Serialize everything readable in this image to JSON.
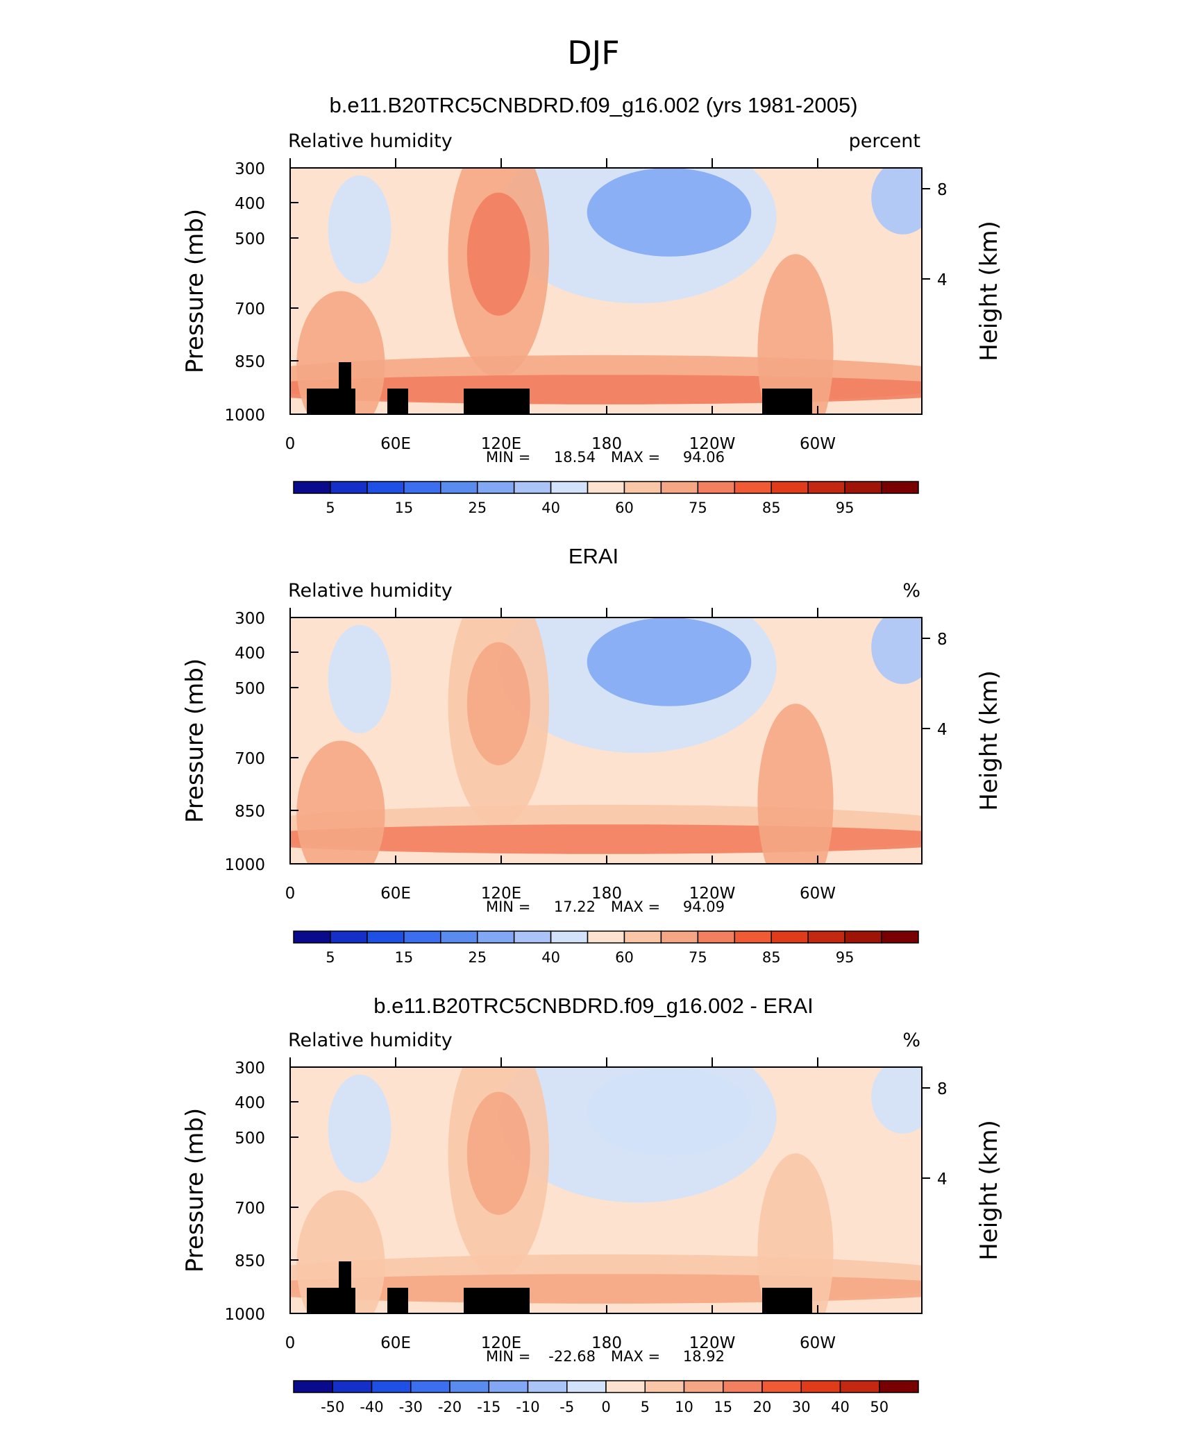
{
  "page_title": "DJF",
  "chart_data": [
    {
      "type": "heatmap",
      "title": "b.e11.B20TRC5CNBDRD.f09_g16.002 (yrs 1981-2005)",
      "left_label": "Relative humidity",
      "right_label": "percent",
      "ylabel": "Pressure (mb)",
      "ylabel_right": "Height (km)",
      "x_ticks": [
        "0",
        "60E",
        "120E",
        "180",
        "120W",
        "60W"
      ],
      "y_ticks": [
        "300",
        "400",
        "500",
        "700",
        "850",
        "1000"
      ],
      "y_ticks_right": [
        "8",
        "4"
      ],
      "min_label": "MIN =",
      "min_value": "18.54",
      "max_label": "MAX =",
      "max_value": "94.06",
      "colorbar_labels": [
        "5",
        "15",
        "25",
        "40",
        "60",
        "75",
        "85",
        "95"
      ],
      "colorbar_colors": [
        "#0a0a8c",
        "#1430c8",
        "#1e50e6",
        "#3c6ef0",
        "#5a8cf0",
        "#82a8f5",
        "#aac4f8",
        "#d2e2fa",
        "#fde3cf",
        "#f9c7a8",
        "#f5a785",
        "#f28060",
        "#f05a35",
        "#e03c1a",
        "#c42810",
        "#a01408",
        "#780000"
      ],
      "fields": {
        "blue": 0.65,
        "red": 0.55,
        "mask": true
      }
    },
    {
      "type": "heatmap",
      "title": "ERAI",
      "left_label": "Relative humidity",
      "right_label": "%",
      "ylabel": "Pressure (mb)",
      "ylabel_right": "Height (km)",
      "x_ticks": [
        "0",
        "60E",
        "120E",
        "180",
        "120W",
        "60W"
      ],
      "y_ticks": [
        "300",
        "400",
        "500",
        "700",
        "850",
        "1000"
      ],
      "y_ticks_right": [
        "8",
        "4"
      ],
      "min_label": "MIN =",
      "min_value": "17.22",
      "max_label": "MAX =",
      "max_value": "94.09",
      "colorbar_labels": [
        "5",
        "15",
        "25",
        "40",
        "60",
        "75",
        "85",
        "95"
      ],
      "colorbar_colors": [
        "#0a0a8c",
        "#1430c8",
        "#1e50e6",
        "#3c6ef0",
        "#5a8cf0",
        "#82a8f5",
        "#aac4f8",
        "#d2e2fa",
        "#fde3cf",
        "#f9c7a8",
        "#f5a785",
        "#f28060",
        "#f05a35",
        "#e03c1a",
        "#c42810",
        "#a01408",
        "#780000"
      ],
      "fields": {
        "blue": 0.7,
        "red": 0.45,
        "mask": false
      }
    },
    {
      "type": "heatmap",
      "title": "b.e11.B20TRC5CNBDRD.f09_g16.002 - ERAI",
      "left_label": "Relative humidity",
      "right_label": "%",
      "ylabel": "Pressure (mb)",
      "ylabel_right": "Height (km)",
      "x_ticks": [
        "0",
        "60E",
        "120E",
        "180",
        "120W",
        "60W"
      ],
      "y_ticks": [
        "300",
        "400",
        "500",
        "700",
        "850",
        "1000"
      ],
      "y_ticks_right": [
        "8",
        "4"
      ],
      "min_label": "MIN =",
      "min_value": "-22.68",
      "max_label": "MAX =",
      "max_value": "18.92",
      "colorbar_labels": [
        "-50",
        "-40",
        "-30",
        "-20",
        "-15",
        "-10",
        "-5",
        "0",
        "5",
        "10",
        "15",
        "20",
        "30",
        "40",
        "50"
      ],
      "colorbar_colors": [
        "#0a0a8c",
        "#1430c8",
        "#1e50e6",
        "#3c6ef0",
        "#5a8cf0",
        "#82a8f5",
        "#aac4f8",
        "#d2e2fa",
        "#fde3cf",
        "#f9c7a8",
        "#f5a785",
        "#f28060",
        "#f05a35",
        "#e03c1a",
        "#c42810",
        "#780000"
      ],
      "fields": {
        "blue": 0.35,
        "red": 0.35,
        "mask": true
      }
    }
  ]
}
